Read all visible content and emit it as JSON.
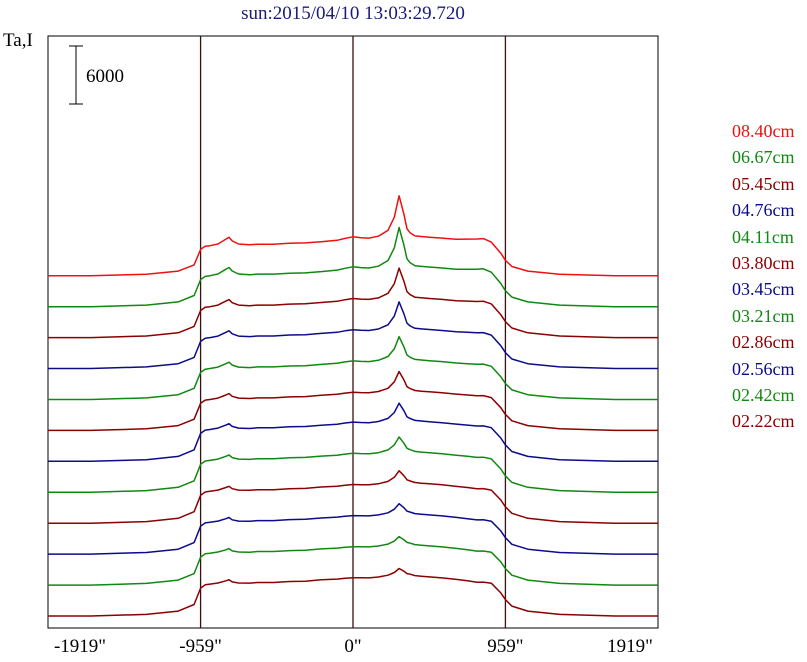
{
  "chart_data": {
    "type": "line",
    "title": "sun:2015/04/10 13:03:29.720",
    "ylabel": "Ta,I",
    "scale_bar": {
      "label": "6000",
      "value": 6000
    },
    "xlim": [
      -1919,
      1919
    ],
    "xticks": [
      {
        "value": -1919,
        "label": "-1919\""
      },
      {
        "value": -959,
        "label": "-959\""
      },
      {
        "value": 0,
        "label": "0\""
      },
      {
        "value": 959,
        "label": "959\""
      },
      {
        "value": 1919,
        "label": "1919\""
      }
    ],
    "reference_lines_x": [
      -959,
      0,
      959
    ],
    "series_profile": {
      "x": [
        -1919,
        -1650,
        -1300,
        -1100,
        -1000,
        -959,
        -930,
        -900,
        -850,
        -800,
        -780,
        -760,
        -720,
        -650,
        -600,
        -500,
        -400,
        -300,
        -200,
        -100,
        -50,
        0,
        50,
        100,
        160,
        220,
        260,
        290,
        320,
        340,
        360,
        390,
        430,
        480,
        560,
        650,
        720,
        780,
        820,
        870,
        930,
        959,
        1000,
        1100,
        1300,
        1650,
        1919
      ],
      "base_shape": [
        0,
        0,
        0.05,
        0.15,
        0.35,
        0.85,
        0.95,
        0.97,
        1.0,
        1.05,
        1.08,
        1.02,
        1.0,
        1.0,
        1.02,
        1.02,
        1.05,
        1.06,
        1.1,
        1.12,
        1.14,
        1.15,
        1.15,
        1.15,
        1.17,
        1.2,
        1.22,
        1.24,
        1.25,
        1.25,
        1.25,
        1.22,
        1.2,
        1.18,
        1.15,
        1.1,
        1.05,
        1.0,
        1.0,
        0.98,
        0.7,
        0.5,
        0.3,
        0.15,
        0.05,
        0,
        0
      ],
      "peak_shape": [
        0,
        0,
        0,
        0,
        0,
        0,
        0,
        0,
        0.02,
        0.1,
        0.12,
        0.08,
        0.02,
        0,
        0,
        0,
        0,
        0,
        0,
        0.02,
        0.05,
        0.08,
        0.06,
        0.05,
        0.08,
        0.2,
        0.5,
        1.0,
        0.55,
        0.2,
        0.1,
        0.05,
        0.05,
        0.05,
        0.05,
        0.06,
        0.1,
        0.14,
        0.15,
        0.08,
        0.02,
        0,
        0,
        0,
        0,
        0,
        0
      ]
    },
    "series": [
      {
        "name": "08.40cm",
        "color": "#ee1111",
        "offset": 0,
        "disk_level": 3200,
        "peak_height": 4300
      },
      {
        "name": "06.67cm",
        "color": "#118811",
        "offset": 3200,
        "disk_level": 3300,
        "peak_height": 4100
      },
      {
        "name": "05.45cm",
        "color": "#8b0000",
        "offset": 6400,
        "disk_level": 3300,
        "peak_height": 3100
      },
      {
        "name": "04.76cm",
        "color": "#0b0b8b",
        "offset": 9600,
        "disk_level": 3300,
        "peak_height": 2800
      },
      {
        "name": "04.11cm",
        "color": "#118811",
        "offset": 12800,
        "disk_level": 3300,
        "peak_height": 2400
      },
      {
        "name": "03.80cm",
        "color": "#8b0000",
        "offset": 16000,
        "disk_level": 3300,
        "peak_height": 2000
      },
      {
        "name": "03.45cm",
        "color": "#0b0b8b",
        "offset": 19200,
        "disk_level": 3400,
        "peak_height": 1800
      },
      {
        "name": "03.21cm",
        "color": "#118811",
        "offset": 22400,
        "disk_level": 3400,
        "peak_height": 1500
      },
      {
        "name": "02.86cm",
        "color": "#8b0000",
        "offset": 25600,
        "disk_level": 3400,
        "peak_height": 1200
      },
      {
        "name": "02.56cm",
        "color": "#0b0b8b",
        "offset": 28800,
        "disk_level": 3400,
        "peak_height": 1000
      },
      {
        "name": "02.42cm",
        "color": "#118811",
        "offset": 32000,
        "disk_level": 3400,
        "peak_height": 800
      },
      {
        "name": "02.22cm",
        "color": "#8b0000",
        "offset": 35200,
        "disk_level": 3400,
        "peak_height": 700
      }
    ],
    "grid": false,
    "legend_position": "right"
  }
}
